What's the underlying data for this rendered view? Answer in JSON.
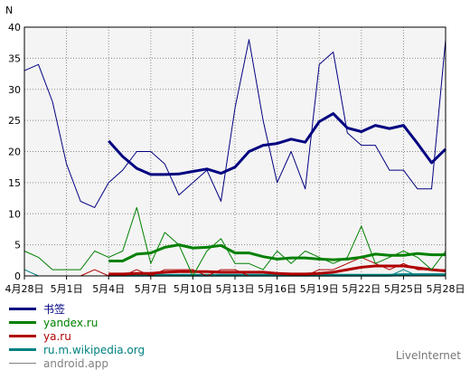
{
  "chart_data": {
    "type": "line",
    "ylabel": "N",
    "ylim": [
      0,
      40
    ],
    "yticks": [
      0,
      5,
      10,
      15,
      20,
      25,
      30,
      35,
      40
    ],
    "x": [
      "4月28日",
      "4月29日",
      "4月30日",
      "5月1日",
      "5月2日",
      "5月3日",
      "5月4日",
      "5月5日",
      "5月6日",
      "5月7日",
      "5月8日",
      "5月9日",
      "5月10日",
      "5月11日",
      "5月12日",
      "5月13日",
      "5月14日",
      "5月15日",
      "5月16日",
      "5月17日",
      "5月18日",
      "5月19日",
      "5月20日",
      "5月21日",
      "5月22日",
      "5月23日",
      "5月24日",
      "5月25日",
      "5月26日",
      "5月27日",
      "5月28日"
    ],
    "xtick_labels": [
      "4月28日",
      "5月1日",
      "5月4日",
      "5月7日",
      "5月10日",
      "5月13日",
      "5月16日",
      "5月19日",
      "5月22日",
      "5月25日",
      "5月28日"
    ],
    "grid": true,
    "legend_position": "bottom-left",
    "series": [
      {
        "name": "书签",
        "color": "#000080",
        "style": "thin",
        "values": [
          33,
          34,
          28,
          18,
          12,
          11,
          15,
          17,
          20,
          20,
          18,
          13,
          15,
          17,
          12,
          27,
          38,
          25,
          15,
          20,
          14,
          34,
          36,
          23,
          21,
          21,
          17,
          17,
          14,
          14,
          38
        ]
      },
      {
        "name": "书签",
        "color": "#000080",
        "style": "thick",
        "legend": false,
        "values": [
          null,
          null,
          null,
          null,
          null,
          null,
          21.7,
          19.2,
          17.3,
          16.3,
          16.3,
          16.4,
          16.8,
          17.2,
          16.5,
          17.5,
          20,
          21,
          21.3,
          22,
          21.5,
          24.8,
          26.1,
          23.8,
          23.2,
          24.2,
          23.7,
          24.2,
          21.3,
          18.2,
          20.4
        ]
      },
      {
        "name": "yandex.ru",
        "color": "#008000",
        "style": "thin",
        "values": [
          4,
          3,
          1,
          1,
          1,
          4,
          3,
          4,
          11,
          2,
          7,
          5,
          0,
          4,
          6,
          2,
          2,
          1,
          4,
          2,
          4,
          3,
          2,
          3,
          8,
          2,
          3,
          4,
          3,
          1,
          4
        ]
      },
      {
        "name": "yandex.ru",
        "color": "#008000",
        "style": "thick",
        "legend": false,
        "values": [
          null,
          null,
          null,
          null,
          null,
          null,
          2.4,
          2.4,
          3.5,
          3.7,
          4.6,
          5,
          4.5,
          4.6,
          4.9,
          3.7,
          3.7,
          3.1,
          2.7,
          2.9,
          2.9,
          2.7,
          2.6,
          2.7,
          3,
          3.5,
          3.3,
          3.3,
          3.6,
          3.4,
          3.4
        ]
      },
      {
        "name": "ya.ru",
        "color": "#b00000",
        "style": "thin",
        "values": [
          0,
          0,
          0,
          0,
          0,
          1,
          0,
          0,
          1,
          0,
          1,
          1,
          1,
          0,
          1,
          1,
          0,
          0,
          0,
          0,
          0,
          1,
          1,
          2,
          3,
          2,
          1,
          2,
          1,
          1,
          1
        ]
      },
      {
        "name": "ya.ru",
        "color": "#b00000",
        "style": "thick",
        "legend": false,
        "values": [
          null,
          null,
          null,
          null,
          null,
          null,
          0.3,
          0.3,
          0.4,
          0.4,
          0.6,
          0.7,
          0.7,
          0.7,
          0.6,
          0.6,
          0.6,
          0.6,
          0.4,
          0.3,
          0.3,
          0.4,
          0.6,
          1,
          1.4,
          1.6,
          1.6,
          1.6,
          1.3,
          1,
          0.8
        ]
      },
      {
        "name": "ru.m.wikipedia.org",
        "color": "#008080",
        "style": "thin",
        "values": [
          1,
          0,
          0,
          0,
          0,
          0,
          0,
          0,
          0,
          0,
          0,
          0,
          0,
          0,
          0,
          0,
          0,
          0,
          0,
          0,
          0,
          0,
          0,
          0,
          0,
          0,
          0,
          1,
          0,
          0,
          0
        ]
      },
      {
        "name": "ru.m.wikipedia.org",
        "color": "#008080",
        "style": "thick",
        "legend": false,
        "values": [
          null,
          null,
          null,
          null,
          null,
          null,
          0.1,
          0.1,
          0.1,
          0.1,
          0.1,
          0.1,
          0.1,
          0.1,
          0.1,
          0.1,
          0.1,
          0.1,
          0.1,
          0.1,
          0.1,
          0.1,
          0.1,
          0.1,
          0.1,
          0.1,
          0.1,
          0.2,
          0.2,
          0.2,
          0.2
        ]
      },
      {
        "name": "android.app",
        "color": "#808080",
        "style": "thin",
        "values": [
          0,
          0,
          0,
          0,
          0,
          0,
          0,
          0,
          0,
          0,
          0,
          0,
          0,
          0,
          0,
          0,
          0,
          0,
          0,
          0,
          0,
          0,
          0,
          0,
          0,
          0,
          0,
          0,
          0,
          0,
          0
        ]
      }
    ]
  },
  "legend": [
    {
      "label": "书签",
      "color": "#000080"
    },
    {
      "label": "yandex.ru",
      "color": "#008000"
    },
    {
      "label": "ya.ru",
      "color": "#b00000"
    },
    {
      "label": "ru.m.wikipedia.org",
      "color": "#008080"
    },
    {
      "label": "android.app",
      "color": "#808080"
    }
  ],
  "brand": "LiveInternet"
}
